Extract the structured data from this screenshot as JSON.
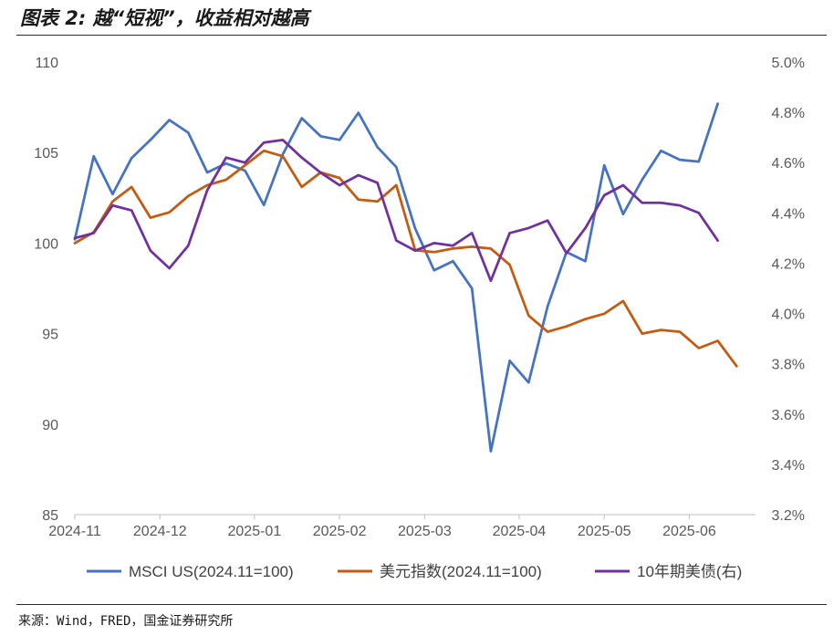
{
  "figure_title": "图表 2: 越“短视”，收益相对越高",
  "source_note": "来源：Wind，FRED，国金证券研究所",
  "chart_data": {
    "type": "line",
    "title": "越“短视”，收益相对越高",
    "xlabel": "",
    "ylabel": "",
    "ylim": [
      85,
      110
    ],
    "y2lim": [
      3.2,
      5.0
    ],
    "y_ticks": [
      85,
      90,
      95,
      100,
      105,
      110
    ],
    "y_tick_labels": [
      "85",
      "90",
      "95",
      "100",
      "105",
      "110"
    ],
    "y2_ticks": [
      3.2,
      3.4,
      3.6,
      3.8,
      4.0,
      4.2,
      4.4,
      4.6,
      4.8,
      5.0
    ],
    "y2_tick_labels": [
      "3.2%",
      "3.4%",
      "3.6%",
      "3.8%",
      "4.0%",
      "4.2%",
      "4.4%",
      "4.6%",
      "4.8%",
      "5.0%"
    ],
    "x_tick_labels": [
      "2024-11",
      "2024-12",
      "2025-01",
      "2025-02",
      "2025-03",
      "2025-04",
      "2025-05",
      "2025-06"
    ],
    "x_tick_positions": [
      0,
      4.5,
      9.5,
      14,
      18.5,
      23.5,
      28,
      32.5
    ],
    "x": [
      0,
      1,
      2,
      3,
      4,
      5,
      6,
      7,
      8,
      9,
      10,
      11,
      12,
      13,
      14,
      15,
      16,
      17,
      18,
      19,
      20,
      21,
      22,
      23,
      24,
      25,
      26,
      27,
      28,
      29,
      30,
      31,
      32,
      33,
      34,
      35,
      36
    ],
    "series": [
      {
        "name": "MSCI US(2024.11=100)",
        "axis": "left",
        "color": "#4472c4",
        "values": [
          100.2,
          104.8,
          102.7,
          104.7,
          105.7,
          106.8,
          106.1,
          103.9,
          104.4,
          104.0,
          102.1,
          104.9,
          106.9,
          105.9,
          105.7,
          107.2,
          105.3,
          104.2,
          100.8,
          98.5,
          99.0,
          97.5,
          88.5,
          93.5,
          92.3,
          96.5,
          99.5,
          99.0,
          104.3,
          101.6,
          103.5,
          105.1,
          104.6,
          104.5,
          107.7,
          null,
          null
        ]
      },
      {
        "name": "美元指数(2024.11=100)",
        "axis": "left",
        "color": "#c55a11",
        "values": [
          100.0,
          100.6,
          102.3,
          103.1,
          101.4,
          101.7,
          102.6,
          103.2,
          103.5,
          104.3,
          105.1,
          104.8,
          103.1,
          103.9,
          103.6,
          102.4,
          102.3,
          103.2,
          99.6,
          99.5,
          99.7,
          99.8,
          99.7,
          98.8,
          96.0,
          95.1,
          95.4,
          95.8,
          96.1,
          96.8,
          95.0,
          95.2,
          95.1,
          94.2,
          94.6,
          93.2,
          null
        ]
      },
      {
        "name": "10年期美债(右)",
        "axis": "right",
        "color": "#7030a0",
        "values": [
          4.3,
          4.32,
          4.43,
          4.41,
          4.25,
          4.18,
          4.27,
          4.49,
          4.62,
          4.6,
          4.68,
          4.69,
          4.62,
          4.56,
          4.51,
          4.55,
          4.52,
          4.29,
          4.25,
          4.28,
          4.27,
          4.32,
          4.13,
          4.32,
          4.34,
          4.37,
          4.24,
          4.34,
          4.47,
          4.51,
          4.44,
          4.44,
          4.43,
          4.4,
          4.29,
          null,
          null
        ]
      }
    ],
    "legend": "bottom",
    "grid": false
  }
}
